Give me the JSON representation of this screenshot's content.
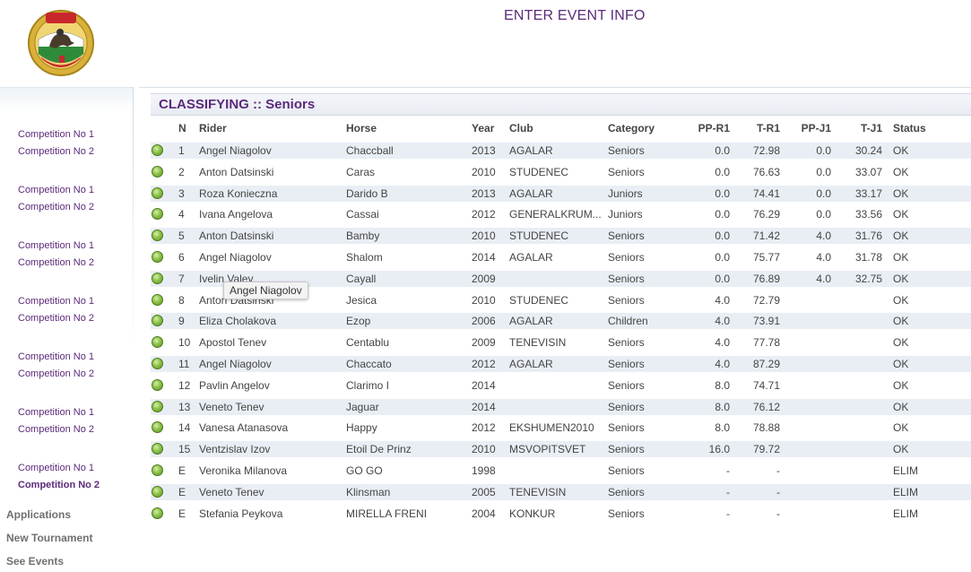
{
  "page_title": "ENTER EVENT INFO",
  "logo": {
    "icon": "federation-emblem-icon"
  },
  "sidebar": {
    "competition_links": [
      [
        "Competition No 1",
        "Competition No 2"
      ],
      [
        "Competition No 1",
        "Competition No 2"
      ],
      [
        "Competition No 1",
        "Competition No 2"
      ],
      [
        "Competition No 1",
        "Competition No 2"
      ],
      [
        "Competition No 1",
        "Competition No 2"
      ],
      [
        "Competition No 1",
        "Competition No 2"
      ],
      [
        "Competition No 1",
        "Competition No 2"
      ]
    ],
    "active_link": "Competition No 2",
    "menu": [
      "Applications",
      "New Tournament",
      "See Events"
    ]
  },
  "section_title": "CLASSIFYING :: Seniors",
  "columns": [
    "N",
    "Rider",
    "Horse",
    "Year",
    "Club",
    "Category",
    "PP-R1",
    "T-R1",
    "PP-J1",
    "T-J1",
    "Status"
  ],
  "rows": [
    {
      "n": "1",
      "rider": "Angel Niagolov",
      "horse": "Chaccball",
      "year": "2013",
      "club": "AGALAR",
      "category": "Seniors",
      "pp_r1": "0.0",
      "t_r1": "72.98",
      "pp_j1": "0.0",
      "t_j1": "30.24",
      "status": "OK"
    },
    {
      "n": "2",
      "rider": "Anton Datsinski",
      "horse": "Caras",
      "year": "2010",
      "club": "STUDENEC",
      "category": "Seniors",
      "pp_r1": "0.0",
      "t_r1": "76.63",
      "pp_j1": "0.0",
      "t_j1": "33.07",
      "status": "OK"
    },
    {
      "n": "3",
      "rider": "Roza Konieczna",
      "horse": "Darido B",
      "year": "2013",
      "club": "AGALAR",
      "category": "Juniors",
      "pp_r1": "0.0",
      "t_r1": "74.41",
      "pp_j1": "0.0",
      "t_j1": "33.17",
      "status": "OK"
    },
    {
      "n": "4",
      "rider": "Ivana Angelova",
      "horse": "Cassai",
      "year": "2012",
      "club": "GENERALKRUM...",
      "category": "Juniors",
      "pp_r1": "0.0",
      "t_r1": "76.29",
      "pp_j1": "0.0",
      "t_j1": "33.56",
      "status": "OK"
    },
    {
      "n": "5",
      "rider": "Anton Datsinski",
      "horse": "Bamby",
      "year": "2010",
      "club": "STUDENEC",
      "category": "Seniors",
      "pp_r1": "0.0",
      "t_r1": "71.42",
      "pp_j1": "4.0",
      "t_j1": "31.76",
      "status": "OK"
    },
    {
      "n": "6",
      "rider": "Angel Niagolov",
      "horse": "Shalom",
      "year": "2014",
      "club": "AGALAR",
      "category": "Seniors",
      "pp_r1": "0.0",
      "t_r1": "75.77",
      "pp_j1": "4.0",
      "t_j1": "31.78",
      "status": "OK"
    },
    {
      "n": "7",
      "rider": "Ivelin Valev",
      "horse": "Cayall",
      "year": "2009",
      "club": "",
      "category": "Seniors",
      "pp_r1": "0.0",
      "t_r1": "76.89",
      "pp_j1": "4.0",
      "t_j1": "32.75",
      "status": "OK"
    },
    {
      "n": "8",
      "rider": "Anton Datsinski",
      "horse": "Jesica",
      "year": "2010",
      "club": "STUDENEC",
      "category": "Seniors",
      "pp_r1": "4.0",
      "t_r1": "72.79",
      "pp_j1": "",
      "t_j1": "",
      "status": "OK"
    },
    {
      "n": "9",
      "rider": "Eliza Cholakova",
      "horse": "Ezop",
      "year": "2006",
      "club": "AGALAR",
      "category": "Children",
      "pp_r1": "4.0",
      "t_r1": "73.91",
      "pp_j1": "",
      "t_j1": "",
      "status": "OK"
    },
    {
      "n": "10",
      "rider": "Apostol Tenev",
      "horse": "Centablu",
      "year": "2009",
      "club": "TENEVISIN",
      "category": "Seniors",
      "pp_r1": "4.0",
      "t_r1": "77.78",
      "pp_j1": "",
      "t_j1": "",
      "status": "OK"
    },
    {
      "n": "11",
      "rider": "Angel Niagolov",
      "horse": "Chaccato",
      "year": "2012",
      "club": "AGALAR",
      "category": "Seniors",
      "pp_r1": "4.0",
      "t_r1": "87.29",
      "pp_j1": "",
      "t_j1": "",
      "status": "OK"
    },
    {
      "n": "12",
      "rider": "Pavlin Angelov",
      "horse": "Clarimo I",
      "year": "2014",
      "club": "",
      "category": "Seniors",
      "pp_r1": "8.0",
      "t_r1": "74.71",
      "pp_j1": "",
      "t_j1": "",
      "status": "OK"
    },
    {
      "n": "13",
      "rider": "Veneto Tenev",
      "horse": "Jaguar",
      "year": "2014",
      "club": "",
      "category": "Seniors",
      "pp_r1": "8.0",
      "t_r1": "76.12",
      "pp_j1": "",
      "t_j1": "",
      "status": "OK"
    },
    {
      "n": "14",
      "rider": "Vanesa Atanasova",
      "horse": "Happy",
      "year": "2012",
      "club": "EKSHUMEN2010",
      "category": "Seniors",
      "pp_r1": "8.0",
      "t_r1": "78.88",
      "pp_j1": "",
      "t_j1": "",
      "status": "OK"
    },
    {
      "n": "15",
      "rider": "Ventzislav Izov",
      "horse": "Etoil De Prinz",
      "year": "2010",
      "club": "MSVOPITSVET",
      "category": "Seniors",
      "pp_r1": "16.0",
      "t_r1": "79.72",
      "pp_j1": "",
      "t_j1": "",
      "status": "OK"
    },
    {
      "n": "E",
      "rider": "Veronika Milanova",
      "horse": "GO GO",
      "year": "1998",
      "club": "",
      "category": "Seniors",
      "pp_r1": "-",
      "t_r1": "-",
      "pp_j1": "",
      "t_j1": "",
      "status": "ELIM"
    },
    {
      "n": "E",
      "rider": "Veneto Tenev",
      "horse": "Klinsman",
      "year": "2005",
      "club": "TENEVISIN",
      "category": "Seniors",
      "pp_r1": "-",
      "t_r1": "-",
      "pp_j1": "",
      "t_j1": "",
      "status": "ELIM"
    },
    {
      "n": "E",
      "rider": "Stefania Peykova",
      "horse": "MIRELLA FRENI",
      "year": "2004",
      "club": "KONKUR",
      "category": "Seniors",
      "pp_r1": "-",
      "t_r1": "-",
      "pp_j1": "",
      "t_j1": "",
      "status": "ELIM"
    }
  ],
  "tooltip": "Angel Niagolov",
  "colors": {
    "accent": "#5b2a7a",
    "row_alt": "#e9eef5",
    "status_dot": "#8cc34a"
  }
}
